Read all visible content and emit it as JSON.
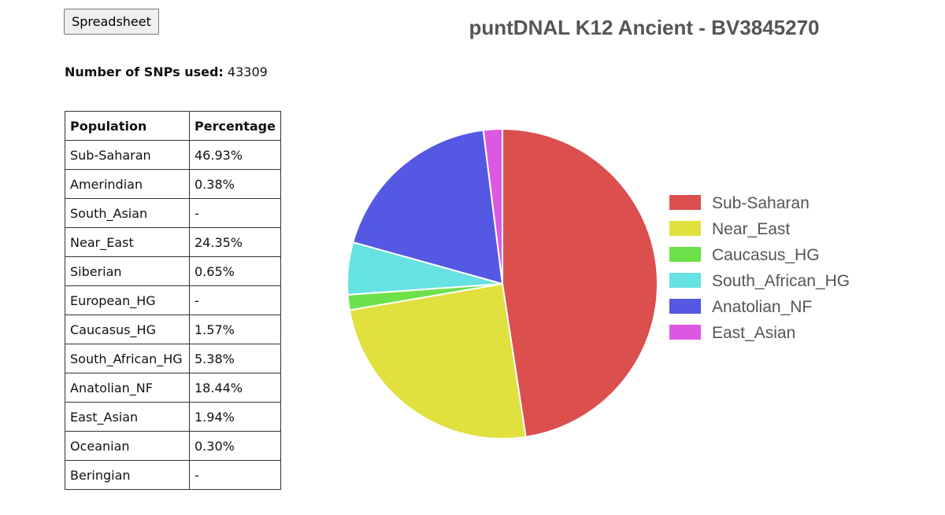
{
  "toolbar": {
    "spreadsheet_label": "Spreadsheet"
  },
  "snps": {
    "label": "Number of SNPs used:",
    "value": "43309"
  },
  "table": {
    "headers": [
      "Population",
      "Percentage"
    ],
    "rows": [
      [
        "Sub-Saharan",
        "46.93%"
      ],
      [
        "Amerindian",
        "0.38%"
      ],
      [
        "South_Asian",
        "-"
      ],
      [
        "Near_East",
        "24.35%"
      ],
      [
        "Siberian",
        "0.65%"
      ],
      [
        "European_HG",
        "-"
      ],
      [
        "Caucasus_HG",
        "1.57%"
      ],
      [
        "South_African_HG",
        "5.38%"
      ],
      [
        "Anatolian_NF",
        "18.44%"
      ],
      [
        "East_Asian",
        "1.94%"
      ],
      [
        "Oceanian",
        "0.30%"
      ],
      [
        "Beringian",
        "-"
      ]
    ]
  },
  "chart_data": {
    "type": "pie",
    "title": "puntDNAL K12 Ancient - BV3845270",
    "legend_position": "right",
    "slices": [
      {
        "name": "Sub-Saharan",
        "value": 46.93,
        "color": "#db4f4f"
      },
      {
        "name": "Near_East",
        "value": 24.35,
        "color": "#e0e03f"
      },
      {
        "name": "Caucasus_HG",
        "value": 1.57,
        "color": "#6ce14a"
      },
      {
        "name": "South_African_HG",
        "value": 5.38,
        "color": "#66e2e2"
      },
      {
        "name": "Anatolian_NF",
        "value": 18.44,
        "color": "#5458e3"
      },
      {
        "name": "East_Asian",
        "value": 1.94,
        "color": "#dc58e3"
      }
    ]
  }
}
